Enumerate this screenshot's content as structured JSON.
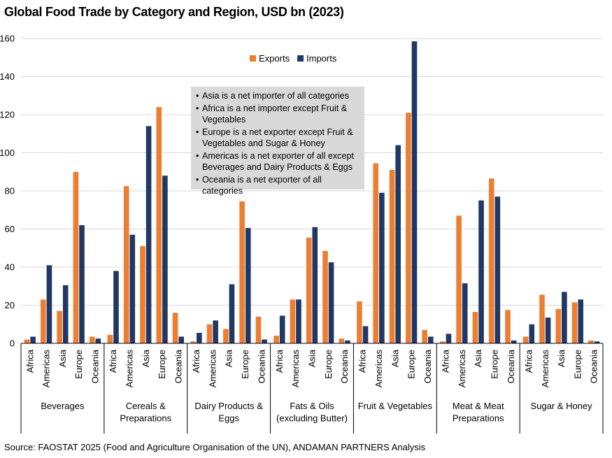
{
  "page": {
    "title": "Global Food Trade by Category and Region, USD bn (2023)",
    "source": "Source: FAOSTAT 2025 (Food and Agriculture Organisation of the UN), ANDAMAN PARTNERS Analysis"
  },
  "annotation": {
    "notes": [
      "Asia is a net importer of all categories",
      "Africa is a net importer except Fruit & Vegetables",
      "Europe is a net exporter except Fruit & Vegetables and Sugar & Honey",
      "Americas is a net exporter of all except Beverages and Dairy Products & Eggs",
      "Oceania is a net exporter of all categories"
    ]
  },
  "chart_data": {
    "type": "bar",
    "title": "Global Food Trade by Category and Region, USD bn (2023)",
    "xlabel": "",
    "ylabel": "",
    "ylim": [
      0,
      160
    ],
    "yticks": [
      0,
      20,
      40,
      60,
      80,
      100,
      120,
      140,
      160
    ],
    "grid": true,
    "legend": "top-center",
    "groups": [
      {
        "label": "Beverages",
        "regions": [
          "Africa",
          "Americas",
          "Asia",
          "Europe",
          "Oceania"
        ]
      },
      {
        "label": "Cereals & Preparations",
        "regions": [
          "Africa",
          "Americas",
          "Asia",
          "Europe",
          "Oceania"
        ]
      },
      {
        "label": "Dairy Products & Eggs",
        "regions": [
          "Africa",
          "Americas",
          "Asia",
          "Europe",
          "Oceania"
        ]
      },
      {
        "label": "Fats & Oils (excluding Butter)",
        "regions": [
          "Africa",
          "Americas",
          "Asia",
          "Europe",
          "Oceania"
        ]
      },
      {
        "label": "Fruit & Vegetables",
        "regions": [
          "Africa",
          "Americas",
          "Asia",
          "Europe",
          "Oceania"
        ]
      },
      {
        "label": "Meat & Meat Preparations",
        "regions": [
          "Africa",
          "Americas",
          "Asia",
          "Europe",
          "Oceania"
        ]
      },
      {
        "label": "Sugar & Honey",
        "regions": [
          "Africa",
          "Americas",
          "Asia",
          "Europe",
          "Oceania"
        ]
      }
    ],
    "series": [
      {
        "name": "Exports",
        "color": "#ed7d31",
        "values": [
          [
            2,
            23,
            17,
            90,
            3.5
          ],
          [
            4.5,
            82.5,
            51,
            124,
            16
          ],
          [
            1,
            10,
            7.5,
            74.5,
            14
          ],
          [
            4,
            23,
            55.5,
            48.5,
            2.5
          ],
          [
            22,
            94.5,
            91,
            121,
            7
          ],
          [
            1,
            67,
            16.5,
            86.5,
            17.5
          ],
          [
            3.5,
            25.5,
            18,
            21.5,
            1.5
          ]
        ]
      },
      {
        "name": "Imports",
        "color": "#203864",
        "values": [
          [
            3.5,
            41,
            30.5,
            62,
            2.5
          ],
          [
            38,
            57,
            114,
            88,
            3.5
          ],
          [
            5.5,
            12,
            31,
            60.5,
            2
          ],
          [
            14.5,
            23,
            61,
            42.5,
            1.5
          ],
          [
            9,
            79,
            104,
            158.5,
            3.5
          ],
          [
            5,
            31.5,
            75,
            77,
            1.5
          ],
          [
            10,
            13.5,
            27,
            23,
            1
          ]
        ]
      }
    ]
  }
}
